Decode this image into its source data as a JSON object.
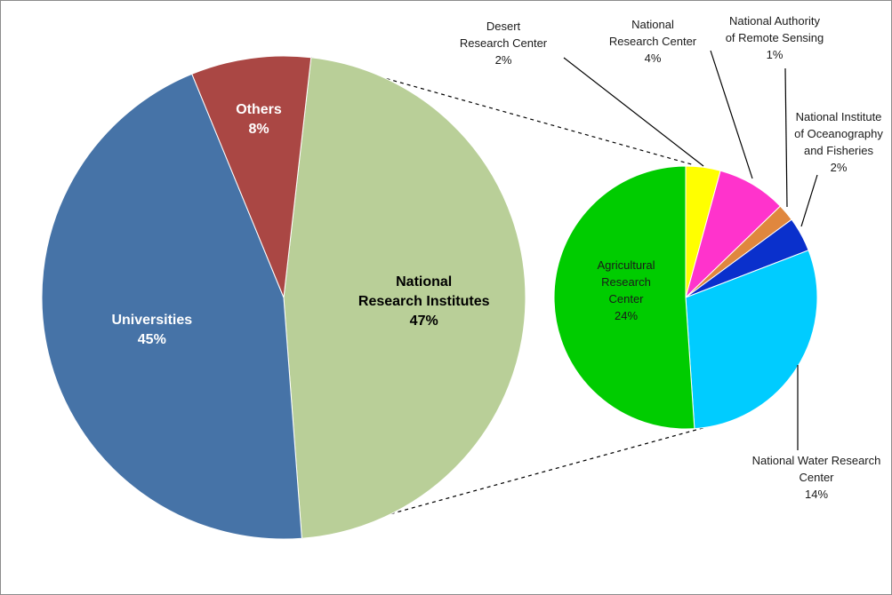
{
  "chart_data": [
    {
      "type": "pie",
      "slices": [
        {
          "label_lines": [
            "National",
            "Research Institutes"
          ],
          "value": 47,
          "value_text": "47%",
          "color": "#b9cf98",
          "label_color": "#000000"
        },
        {
          "label_lines": [
            "Universities"
          ],
          "value": 45,
          "value_text": "45%",
          "color": "#4673a7",
          "label_color": "#ffffff"
        },
        {
          "label_lines": [
            "Others"
          ],
          "value": 8,
          "value_text": "8%",
          "color": "#aa4744",
          "label_color": "#ffffff"
        }
      ]
    },
    {
      "type": "pie",
      "slices": [
        {
          "label_lines": [
            "Desert",
            "Research Center"
          ],
          "value": 2,
          "value_text": "2%",
          "color": "#ffff00"
        },
        {
          "label_lines": [
            "National",
            "Research Center"
          ],
          "value": 4,
          "value_text": "4%",
          "color": "#ff33cc"
        },
        {
          "label_lines": [
            "National Authority",
            "of Remote Sensing"
          ],
          "value": 1,
          "value_text": "1%",
          "color": "#e0873e"
        },
        {
          "label_lines": [
            "National Institute",
            "of Oceanography",
            "and Fisheries"
          ],
          "value": 2,
          "value_text": "2%",
          "color": "#0a30cc"
        },
        {
          "label_lines": [
            "National Water Research",
            "Center"
          ],
          "value": 14,
          "value_text": "14%",
          "color": "#00ccff"
        },
        {
          "label_lines": [
            "Agricultural",
            "Research",
            "Center"
          ],
          "value": 24,
          "value_text": "24%",
          "color": "#00cc00"
        }
      ]
    }
  ]
}
